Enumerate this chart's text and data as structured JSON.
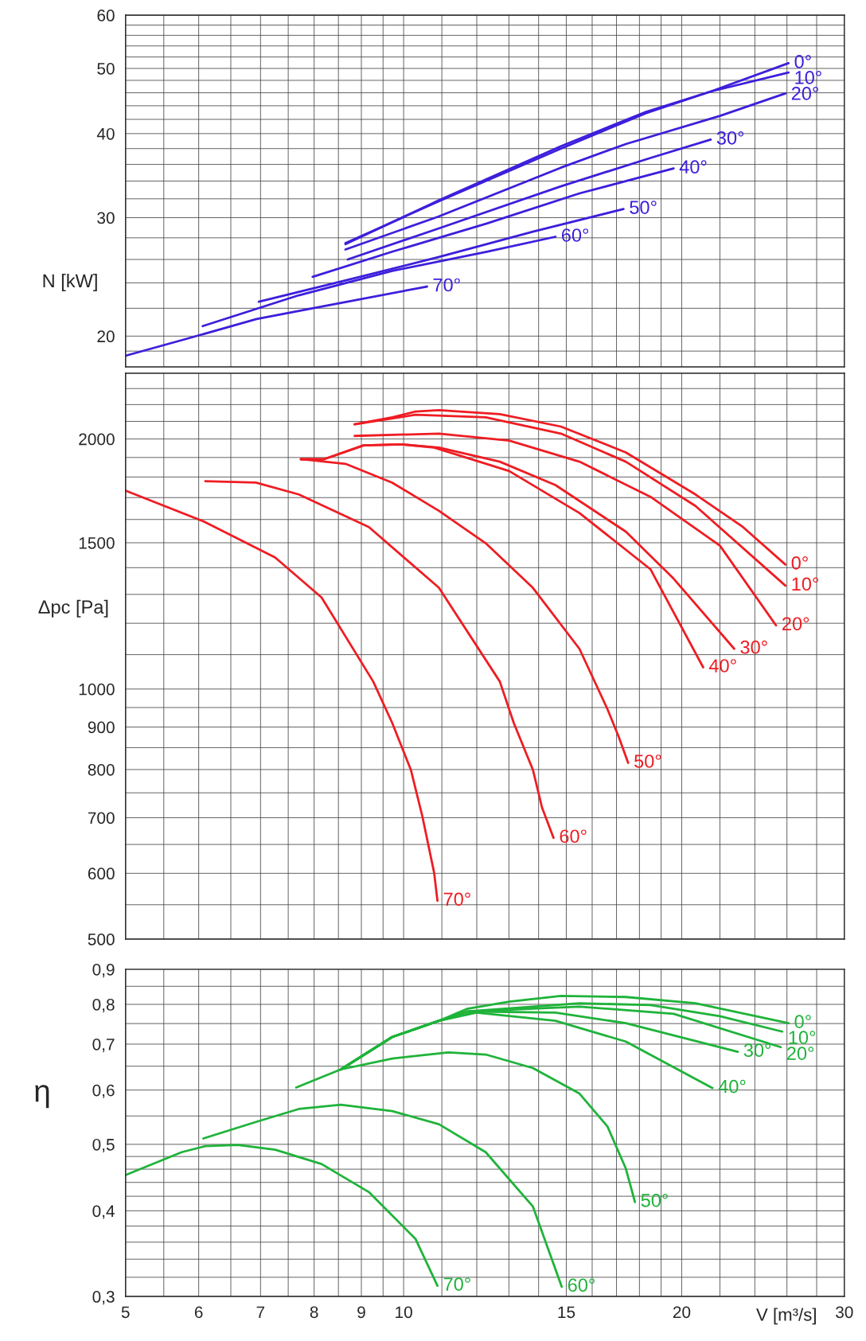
{
  "chart_data": [
    {
      "type": "line",
      "ylabel": "N [kW]",
      "log": "xy",
      "grid": true,
      "tick_labels": "y",
      "xlim": [
        5,
        30
      ],
      "xticks": [
        5,
        {
          "value": 5.5,
          "label": null
        },
        6,
        {
          "value": 6.5,
          "label": null
        },
        7,
        {
          "value": 7.5,
          "label": null
        },
        8,
        {
          "value": 8.5,
          "label": null
        },
        9,
        {
          "value": 9.5,
          "label": null
        },
        10,
        {
          "value": 11,
          "label": null
        },
        {
          "value": 12,
          "label": null
        },
        {
          "value": 13,
          "label": null
        },
        {
          "value": 14,
          "label": null
        },
        15,
        {
          "value": 16,
          "label": null
        },
        {
          "value": 17,
          "label": null
        },
        {
          "value": 18,
          "label": null
        },
        {
          "value": 19,
          "label": null
        },
        20,
        {
          "value": 22,
          "label": null
        },
        {
          "value": 24,
          "label": null
        },
        {
          "value": 26,
          "label": null
        },
        {
          "value": 28,
          "label": null
        },
        30
      ],
      "ylim": [
        18,
        60
      ],
      "yticks": [
        {
          "value": 19,
          "label": null
        },
        20,
        {
          "value": 22,
          "label": null
        },
        {
          "value": 24,
          "label": null
        },
        {
          "value": 26,
          "label": null
        },
        {
          "value": 28,
          "label": null
        },
        30,
        {
          "value": 32,
          "label": null
        },
        {
          "value": 34,
          "label": null
        },
        {
          "value": 36,
          "label": null
        },
        {
          "value": 38,
          "label": null
        },
        40,
        {
          "value": 42,
          "label": null
        },
        {
          "value": 44,
          "label": null
        },
        {
          "value": 46,
          "label": null
        },
        {
          "value": 48,
          "label": null
        },
        50,
        {
          "value": 52,
          "label": null
        },
        {
          "value": 54,
          "label": null
        },
        {
          "value": 56,
          "label": null
        },
        {
          "value": 58,
          "label": null
        },
        60
      ],
      "series": [
        {
          "name": "0°",
          "color": "#3c1fdc",
          "x": [
            8.65,
            10.9,
            14.8,
            18.3,
            21.5,
            26.1
          ],
          "values": [
            27.5,
            31.7,
            38.0,
            42.9,
            46.2,
            50.9
          ]
        },
        {
          "name": "10°",
          "color": "#3c1fdc",
          "x": [
            8.65,
            10.9,
            14.8,
            18.3,
            21.5,
            26.1
          ],
          "values": [
            27.4,
            31.8,
            38.3,
            43.1,
            46.2,
            49.3
          ]
        },
        {
          "name": "20°",
          "color": "#3c1fdc",
          "x": [
            8.65,
            10.9,
            14.8,
            17.4,
            22.0,
            25.9
          ],
          "values": [
            26.9,
            30.1,
            35.6,
            38.6,
            42.5,
            45.9
          ]
        },
        {
          "name": "30°",
          "color": "#3c1fdc",
          "x": [
            8.7,
            10.9,
            14.8,
            18.5,
            21.5
          ],
          "values": [
            26.0,
            28.9,
            33.4,
            36.8,
            39.2
          ]
        },
        {
          "name": "40°",
          "color": "#3c1fdc",
          "x": [
            7.97,
            9.72,
            12.3,
            15.5,
            19.6
          ],
          "values": [
            24.5,
            26.7,
            29.4,
            32.6,
            35.5
          ]
        },
        {
          "name": "50°",
          "color": "#3c1fdc",
          "x": [
            6.97,
            8.65,
            10.9,
            13.8,
            17.3
          ],
          "values": [
            22.5,
            24.2,
            26.2,
            28.6,
            30.9
          ]
        },
        {
          "name": "60°",
          "color": "#3c1fdc",
          "x": [
            6.06,
            7.7,
            9.72,
            12.3,
            14.6
          ],
          "values": [
            20.7,
            23.0,
            25.0,
            26.7,
            28.1
          ]
        },
        {
          "name": "70°",
          "color": "#3c1fdc",
          "x": [
            5.0,
            5.81,
            6.93,
            7.97,
            10.6
          ],
          "values": [
            18.7,
            19.8,
            21.2,
            22.0,
            23.7
          ]
        }
      ]
    },
    {
      "type": "line",
      "ylabel": "Δpc [Pa]",
      "log": "xy",
      "grid": true,
      "tick_labels": "y",
      "xlim": [
        5,
        30
      ],
      "xticks": [
        5,
        {
          "value": 5.5,
          "label": null
        },
        6,
        {
          "value": 6.5,
          "label": null
        },
        7,
        {
          "value": 7.5,
          "label": null
        },
        8,
        {
          "value": 8.5,
          "label": null
        },
        9,
        {
          "value": 9.5,
          "label": null
        },
        10,
        {
          "value": 11,
          "label": null
        },
        {
          "value": 12,
          "label": null
        },
        {
          "value": 13,
          "label": null
        },
        {
          "value": 14,
          "label": null
        },
        15,
        {
          "value": 16,
          "label": null
        },
        {
          "value": 17,
          "label": null
        },
        {
          "value": 18,
          "label": null
        },
        {
          "value": 19,
          "label": null
        },
        20,
        {
          "value": 22,
          "label": null
        },
        {
          "value": 24,
          "label": null
        },
        {
          "value": 26,
          "label": null
        },
        {
          "value": 28,
          "label": null
        },
        30
      ],
      "ylim": [
        500,
        2400
      ],
      "yticks": [
        500,
        {
          "value": 550,
          "label": null
        },
        600,
        {
          "value": 650,
          "label": null
        },
        700,
        {
          "value": 750,
          "label": null
        },
        800,
        {
          "value": 850,
          "label": null
        },
        900,
        {
          "value": 950,
          "label": null
        },
        1000,
        {
          "value": 1100,
          "label": null
        },
        {
          "value": 1200,
          "label": null
        },
        {
          "value": 1300,
          "label": null
        },
        {
          "value": 1400,
          "label": null
        },
        1500,
        {
          "value": 1600,
          "label": null
        },
        {
          "value": 1700,
          "label": null
        },
        {
          "value": 1800,
          "label": null
        },
        {
          "value": 1900,
          "label": null
        },
        2000,
        {
          "value": 2100,
          "label": null
        },
        {
          "value": 2200,
          "label": null
        },
        {
          "value": 2300,
          "label": null
        }
      ],
      "series": [
        {
          "name": "0°",
          "color": "#ee1d23",
          "x": [
            8.85,
            9.72,
            10.3,
            10.92,
            12.71,
            14.8,
            17.4,
            20.7,
            23.3,
            25.9
          ],
          "values": [
            2083,
            2124,
            2158,
            2166,
            2143,
            2070,
            1927,
            1715,
            1567,
            1412
          ]
        },
        {
          "name": "10°",
          "color": "#ee1d23",
          "x": [
            8.85,
            10.3,
            12.27,
            14.8,
            17.4,
            20.7,
            25.9
          ],
          "values": [
            2083,
            2139,
            2124,
            2030,
            1878,
            1661,
            1332
          ]
        },
        {
          "name": "20°",
          "color": "#ee1d23",
          "x": [
            8.85,
            10.92,
            13.01,
            15.5,
            18.5,
            22.0,
            25.3
          ],
          "values": [
            2017,
            2030,
            1991,
            1878,
            1704,
            1488,
            1193
          ]
        },
        {
          "name": "30°",
          "color": "#ee1d23",
          "x": [
            7.74,
            8.2,
            9.05,
            9.95,
            10.92,
            12.71,
            14.6,
            17.4,
            19.6,
            22.8
          ],
          "values": [
            1891,
            1891,
            1965,
            1970,
            1953,
            1878,
            1760,
            1547,
            1358,
            1118
          ]
        },
        {
          "name": "40°",
          "color": "#ee1d23",
          "x": [
            7.74,
            8.2,
            9.05,
            9.95,
            10.79,
            13.01,
            15.5,
            18.5,
            21.1
          ],
          "values": [
            1891,
            1891,
            1965,
            1970,
            1953,
            1830,
            1629,
            1394,
            1062
          ]
        },
        {
          "name": "50°",
          "color": "#ee1d23",
          "x": [
            7.74,
            8.65,
            9.72,
            10.92,
            12.27,
            13.8,
            15.5,
            16.62,
            17.1,
            17.5
          ],
          "values": [
            1891,
            1867,
            1772,
            1639,
            1498,
            1324,
            1118,
            946,
            875,
            815
          ]
        },
        {
          "name": "60°",
          "color": "#ee1d23",
          "x": [
            6.1,
            6.92,
            7.7,
            9.17,
            10.92,
            12.71,
            13.16,
            13.8,
            14.12,
            14.53
          ],
          "values": [
            1779,
            1772,
            1715,
            1567,
            1324,
            1021,
            910,
            800,
            720,
            662
          ]
        },
        {
          "name": "70°",
          "color": "#ee1d23",
          "x": [
            5.0,
            6.1,
            7.26,
            8.15,
            9.27,
            9.72,
            10.18,
            10.48,
            10.79,
            10.88
          ],
          "values": [
            1733,
            1588,
            1440,
            1289,
            1021,
            910,
            800,
            702,
            601,
            556
          ]
        }
      ]
    },
    {
      "type": "line",
      "ylabel": "η",
      "xlabel": "V [m³/s]",
      "log": "xy",
      "grid": true,
      "xlim": [
        5,
        30
      ],
      "xticks": [
        5,
        {
          "value": 5.5,
          "label": null
        },
        6,
        {
          "value": 6.5,
          "label": null
        },
        7,
        {
          "value": 7.5,
          "label": null
        },
        8,
        {
          "value": 8.5,
          "label": null
        },
        9,
        {
          "value": 9.5,
          "label": null
        },
        10,
        {
          "value": 11,
          "label": null
        },
        {
          "value": 12,
          "label": null
        },
        {
          "value": 13,
          "label": null
        },
        {
          "value": 14,
          "label": null
        },
        15,
        {
          "value": 16,
          "label": null
        },
        {
          "value": 17,
          "label": null
        },
        {
          "value": 18,
          "label": null
        },
        {
          "value": 19,
          "label": null
        },
        20,
        {
          "value": 22,
          "label": null
        },
        {
          "value": 24,
          "label": null
        },
        {
          "value": 26,
          "label": null
        },
        {
          "value": 28,
          "label": null
        },
        30
      ],
      "ylim": [
        0.3,
        0.9
      ],
      "yticks": [
        {
          "value": 0.3,
          "label": "0,3"
        },
        {
          "value": 0.32,
          "label": null
        },
        {
          "value": 0.34,
          "label": null
        },
        {
          "value": 0.36,
          "label": null
        },
        {
          "value": 0.38,
          "label": null
        },
        {
          "value": 0.4,
          "label": "0,4"
        },
        {
          "value": 0.42,
          "label": null
        },
        {
          "value": 0.44,
          "label": null
        },
        {
          "value": 0.46,
          "label": null
        },
        {
          "value": 0.48,
          "label": null
        },
        {
          "value": 0.5,
          "label": "0,5"
        },
        {
          "value": 0.55,
          "label": null
        },
        {
          "value": 0.6,
          "label": "0,6"
        },
        {
          "value": 0.65,
          "label": null
        },
        {
          "value": 0.7,
          "label": "0,7"
        },
        {
          "value": 0.75,
          "label": null
        },
        {
          "value": 0.8,
          "label": "0,8"
        },
        {
          "value": 0.85,
          "label": null
        },
        {
          "value": 0.9,
          "label": "0,9"
        }
      ],
      "series": [
        {
          "name": "0°",
          "color": "#1fb33a",
          "x": [
            8.55,
            9.72,
            10.92,
            11.71,
            13.01,
            14.8,
            17.4,
            20.7,
            26.1
          ],
          "values": [
            0.643,
            0.717,
            0.757,
            0.788,
            0.807,
            0.823,
            0.82,
            0.803,
            0.751
          ]
        },
        {
          "name": "10°",
          "color": "#1fb33a",
          "x": [
            8.55,
            9.72,
            10.92,
            11.71,
            15.5,
            18.5,
            22.0,
            25.7
          ],
          "values": [
            0.643,
            0.717,
            0.757,
            0.781,
            0.803,
            0.798,
            0.769,
            0.73
          ]
        },
        {
          "name": "20°",
          "color": "#1fb33a",
          "x": [
            8.55,
            9.72,
            10.92,
            11.71,
            15.5,
            19.6,
            25.6
          ],
          "values": [
            0.643,
            0.717,
            0.757,
            0.781,
            0.794,
            0.775,
            0.693
          ]
        },
        {
          "name": "30°",
          "color": "#1fb33a",
          "x": [
            8.55,
            9.72,
            10.92,
            11.99,
            14.6,
            17.4,
            23.0
          ],
          "values": [
            0.643,
            0.717,
            0.757,
            0.781,
            0.778,
            0.751,
            0.682
          ]
        },
        {
          "name": "40°",
          "color": "#1fb33a",
          "x": [
            8.55,
            9.72,
            10.92,
            11.99,
            14.6,
            17.4,
            21.6
          ],
          "values": [
            0.643,
            0.717,
            0.757,
            0.778,
            0.757,
            0.706,
            0.604
          ]
        },
        {
          "name": "50°",
          "color": "#1fb33a",
          "x": [
            7.65,
            8.55,
            9.72,
            11.18,
            12.27,
            13.8,
            15.5,
            16.62,
            17.4,
            17.8
          ],
          "values": [
            0.605,
            0.643,
            0.667,
            0.681,
            0.676,
            0.646,
            0.593,
            0.531,
            0.461,
            0.412
          ]
        },
        {
          "name": "60°",
          "color": "#1fb33a",
          "x": [
            6.07,
            6.92,
            7.7,
            8.55,
            9.72,
            10.92,
            12.27,
            13.8,
            14.83
          ],
          "values": [
            0.51,
            0.539,
            0.563,
            0.571,
            0.559,
            0.535,
            0.487,
            0.406,
            0.31
          ]
        },
        {
          "name": "70°",
          "color": "#1fb33a",
          "x": [
            5.0,
            5.75,
            6.1,
            6.61,
            7.26,
            8.15,
            9.17,
            10.3,
            10.88
          ],
          "values": [
            0.451,
            0.487,
            0.497,
            0.499,
            0.491,
            0.468,
            0.426,
            0.364,
            0.311
          ]
        }
      ]
    }
  ]
}
